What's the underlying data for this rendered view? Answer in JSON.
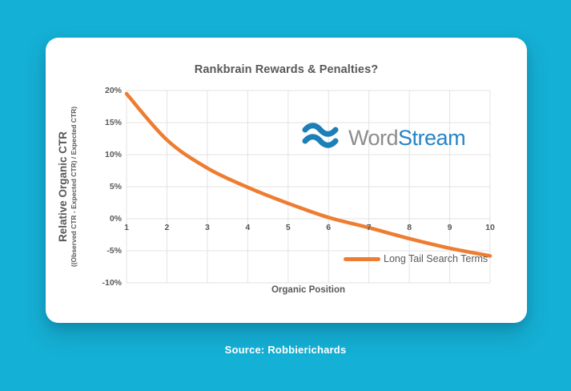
{
  "background_color": "#15b0d5",
  "chart_data": {
    "type": "line",
    "title": "Rankbrain Rewards & Penalties?",
    "xlabel": "Organic Position",
    "ylabel": "Relative Organic CTR",
    "ylabel_sub": "((Observed CTR - Expected CTR) / Expected CTR)",
    "categories": [
      "1",
      "2",
      "3",
      "4",
      "5",
      "6",
      "7",
      "8",
      "9",
      "10"
    ],
    "series": [
      {
        "name": "Long Tail Search Terms",
        "color": "#ED7D31",
        "values": [
          19.5,
          12.3,
          7.9,
          4.9,
          2.4,
          0.2,
          -1.4,
          -3.1,
          -4.6,
          -5.8
        ]
      }
    ],
    "y_ticks": [
      "20%",
      "15%",
      "10%",
      "5%",
      "0%",
      "-5%",
      "-10%"
    ],
    "y_tick_values": [
      20,
      15,
      10,
      5,
      0,
      -5,
      -10
    ],
    "ylim": [
      -10,
      20
    ],
    "grid": true,
    "gridline_color": "#e3e3e3",
    "legend_position": "inside-bottom-right",
    "x_labels_at": "zero-line"
  },
  "logo": {
    "name": "WordStream",
    "part1": "Word",
    "part2": "Stream",
    "part1_color": "#8c8c8c",
    "part2_color": "#2584c6",
    "icon": "waves-icon",
    "icon_color": "#1d7fb8"
  },
  "caption": {
    "text": "Source: Robbierichards",
    "color": "#ffffff"
  }
}
